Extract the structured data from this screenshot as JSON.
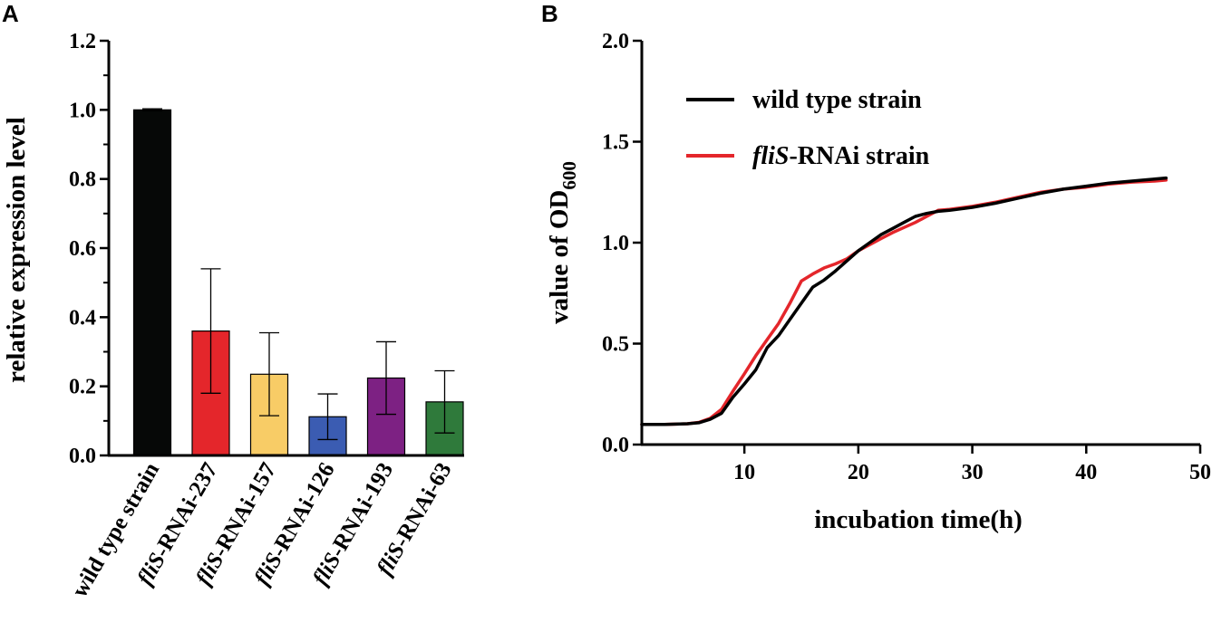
{
  "panels": {
    "a_letter": "A",
    "b_letter": "B"
  },
  "chart_data": [
    {
      "type": "bar",
      "panel": "A",
      "ylabel": "relative expression level",
      "xlabel": "",
      "ylim": [
        0,
        1.2
      ],
      "yticks": [
        "0.0",
        "0.2",
        "0.4",
        "0.6",
        "0.8",
        "1.0",
        "1.2"
      ],
      "categories": [
        {
          "italic": "",
          "rest": "wild type strain"
        },
        {
          "italic": "fliS",
          "rest": "-RNAi-237"
        },
        {
          "italic": "fliS",
          "rest": "-RNAi-157"
        },
        {
          "italic": "fliS",
          "rest": "-RNAi-126"
        },
        {
          "italic": "fliS",
          "rest": "-RNAi-193"
        },
        {
          "italic": "fliS",
          "rest": "-RNAi-63"
        }
      ],
      "values": [
        1.0,
        0.36,
        0.235,
        0.112,
        0.224,
        0.155
      ],
      "errors": [
        0.003,
        0.18,
        0.12,
        0.066,
        0.105,
        0.09
      ],
      "colors": [
        "#060807",
        "#e4262b",
        "#f8cc66",
        "#3b5cb2",
        "#7d2183",
        "#2f7a3b"
      ]
    },
    {
      "type": "line",
      "panel": "B",
      "xlabel": "incubation time(h)",
      "ylabel_main": "value of OD",
      "ylabel_sub": "600",
      "xlim": [
        1,
        50
      ],
      "ylim": [
        0,
        2.0
      ],
      "xticks": [
        "10",
        "20",
        "30",
        "40",
        "50"
      ],
      "yticks": [
        "0.0",
        "0.5",
        "1.0",
        "1.5",
        "2.0"
      ],
      "legend_position": "top-left",
      "series": [
        {
          "name": "wild  type strain",
          "name_italic": "",
          "color": "#000000",
          "x": [
            1,
            3,
            5,
            6,
            7,
            8,
            9,
            10,
            11,
            12,
            13,
            14,
            15,
            16,
            17,
            18,
            19,
            20,
            21,
            22,
            23,
            24,
            25,
            26,
            27,
            28,
            30,
            32,
            34,
            36,
            38,
            40,
            42,
            44,
            46,
            47
          ],
          "y": [
            0.1,
            0.1,
            0.103,
            0.108,
            0.125,
            0.155,
            0.235,
            0.3,
            0.37,
            0.48,
            0.54,
            0.62,
            0.7,
            0.78,
            0.815,
            0.86,
            0.91,
            0.96,
            1.0,
            1.04,
            1.07,
            1.1,
            1.13,
            1.145,
            1.155,
            1.16,
            1.175,
            1.195,
            1.22,
            1.245,
            1.265,
            1.28,
            1.295,
            1.305,
            1.315,
            1.32
          ]
        },
        {
          "name": "-RNAi strain",
          "name_italic": "fliS",
          "color": "#e4262b",
          "x": [
            1,
            3,
            5,
            6,
            7,
            8,
            9,
            10,
            11,
            12,
            13,
            14,
            15,
            16,
            17,
            18,
            19,
            20,
            21,
            22,
            23,
            24,
            25,
            26,
            27,
            28,
            30,
            32,
            34,
            36,
            38,
            40,
            42,
            44,
            46,
            47
          ],
          "y": [
            0.1,
            0.1,
            0.103,
            0.11,
            0.13,
            0.175,
            0.265,
            0.35,
            0.44,
            0.52,
            0.6,
            0.7,
            0.81,
            0.845,
            0.875,
            0.895,
            0.92,
            0.96,
            0.99,
            1.02,
            1.05,
            1.075,
            1.1,
            1.13,
            1.16,
            1.165,
            1.18,
            1.2,
            1.225,
            1.25,
            1.265,
            1.275,
            1.29,
            1.3,
            1.305,
            1.31
          ]
        }
      ]
    }
  ]
}
